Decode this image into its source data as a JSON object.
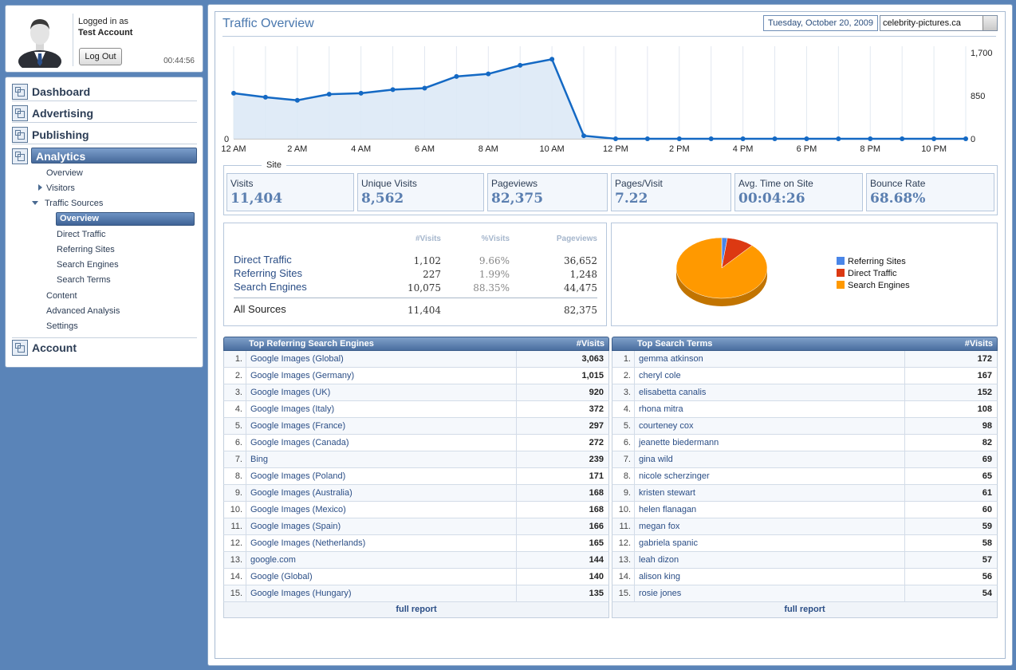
{
  "colors": {
    "accent": "#4a78ae",
    "line": "#1469c4",
    "pie_referring": "#4a86e8",
    "pie_direct": "#dc3912",
    "pie_search": "#ff9900"
  },
  "user": {
    "logged_in_label": "Logged in as",
    "account_name": "Test Account",
    "logout_label": "Log Out",
    "timer": "00:44:56"
  },
  "nav": {
    "main": [
      {
        "label": "Dashboard",
        "icon": "dashboard-icon"
      },
      {
        "label": "Advertising",
        "icon": "advertising-icon"
      },
      {
        "label": "Publishing",
        "icon": "publishing-icon"
      },
      {
        "label": "Analytics",
        "icon": "analytics-icon"
      },
      {
        "label": "Account",
        "icon": "account-icon"
      }
    ],
    "sub": [
      "Overview",
      "Visitors",
      "Traffic Sources",
      "Content",
      "Advanced Analysis",
      "Settings"
    ],
    "traffic_sub": [
      "Overview",
      "Direct Traffic",
      "Referring Sites",
      "Search Engines",
      "Search Terms"
    ]
  },
  "header": {
    "title": "Traffic Overview",
    "date": "Tuesday, October 20, 2009",
    "site": "celebrity-pictures.ca"
  },
  "chart_data": {
    "type": "line",
    "x": [
      "12 AM",
      "1 AM",
      "2 AM",
      "3 AM",
      "4 AM",
      "5 AM",
      "6 AM",
      "7 AM",
      "8 AM",
      "9 AM",
      "10 AM",
      "11 AM",
      "12 PM",
      "1 PM",
      "2 PM",
      "3 PM",
      "4 PM",
      "5 PM",
      "6 PM",
      "7 PM",
      "8 PM",
      "9 PM",
      "10 PM",
      "11 PM"
    ],
    "x_tick_labels": [
      "12 AM",
      "2 AM",
      "4 AM",
      "6 AM",
      "8 AM",
      "10 AM",
      "12 PM",
      "2 PM",
      "4 PM",
      "6 PM",
      "8 PM",
      "10 PM"
    ],
    "values": [
      900,
      820,
      760,
      880,
      900,
      970,
      1000,
      1230,
      1280,
      1450,
      1570,
      60,
      0,
      0,
      0,
      0,
      0,
      0,
      0,
      0,
      0,
      0,
      0,
      0
    ],
    "ylim": [
      0,
      1700
    ],
    "y_ticks": [
      "1,700",
      "850",
      "0"
    ],
    "y_left_tick": "0",
    "grid": true
  },
  "site": {
    "legend": "Site",
    "stats": [
      {
        "label": "Visits",
        "value": "11,404"
      },
      {
        "label": "Unique Visits",
        "value": "8,562"
      },
      {
        "label": "Pageviews",
        "value": "82,375"
      },
      {
        "label": "Pages/Visit",
        "value": "7.22"
      },
      {
        "label": "Avg. Time on Site",
        "value": "00:04:26"
      },
      {
        "label": "Bounce Rate",
        "value": "68.68%"
      }
    ]
  },
  "sources": {
    "headers": {
      "visits": "#Visits",
      "pct": "%Visits",
      "pageviews": "Pageviews"
    },
    "rows": [
      {
        "name": "Direct Traffic",
        "visits": "1,102",
        "pct": "9.66%",
        "pageviews": "36,652"
      },
      {
        "name": "Referring Sites",
        "visits": "227",
        "pct": "1.99%",
        "pageviews": "1,248"
      },
      {
        "name": "Search Engines",
        "visits": "10,075",
        "pct": "88.35%",
        "pageviews": "44,475"
      }
    ],
    "total": {
      "name": "All Sources",
      "visits": "11,404",
      "pageviews": "82,375"
    }
  },
  "pie": {
    "slices": [
      {
        "name": "Referring Sites",
        "pct": 1.99
      },
      {
        "name": "Direct Traffic",
        "pct": 9.66
      },
      {
        "name": "Search Engines",
        "pct": 88.35
      }
    ]
  },
  "engines": {
    "title": "Top Referring Search Engines",
    "value_header": "#Visits",
    "footer": "full report",
    "rows": [
      {
        "idx": "1.",
        "name": "Google Images (Global)",
        "value": "3,063"
      },
      {
        "idx": "2.",
        "name": "Google Images (Germany)",
        "value": "1,015"
      },
      {
        "idx": "3.",
        "name": "Google Images (UK)",
        "value": "920"
      },
      {
        "idx": "4.",
        "name": "Google Images (Italy)",
        "value": "372"
      },
      {
        "idx": "5.",
        "name": "Google Images (France)",
        "value": "297"
      },
      {
        "idx": "6.",
        "name": "Google Images (Canada)",
        "value": "272"
      },
      {
        "idx": "7.",
        "name": "Bing",
        "value": "239"
      },
      {
        "idx": "8.",
        "name": "Google Images (Poland)",
        "value": "171"
      },
      {
        "idx": "9.",
        "name": "Google Images (Australia)",
        "value": "168"
      },
      {
        "idx": "10.",
        "name": "Google Images (Mexico)",
        "value": "168"
      },
      {
        "idx": "11.",
        "name": "Google Images (Spain)",
        "value": "166"
      },
      {
        "idx": "12.",
        "name": "Google Images (Netherlands)",
        "value": "165"
      },
      {
        "idx": "13.",
        "name": "google.com",
        "value": "144"
      },
      {
        "idx": "14.",
        "name": "Google (Global)",
        "value": "140"
      },
      {
        "idx": "15.",
        "name": "Google Images (Hungary)",
        "value": "135"
      }
    ]
  },
  "terms": {
    "title": "Top Search Terms",
    "value_header": "#Visits",
    "footer": "full report",
    "rows": [
      {
        "idx": "1.",
        "name": "gemma atkinson",
        "value": "172"
      },
      {
        "idx": "2.",
        "name": "cheryl cole",
        "value": "167"
      },
      {
        "idx": "3.",
        "name": "elisabetta canalis",
        "value": "152"
      },
      {
        "idx": "4.",
        "name": "rhona mitra",
        "value": "108"
      },
      {
        "idx": "5.",
        "name": "courteney cox",
        "value": "98"
      },
      {
        "idx": "6.",
        "name": "jeanette biedermann",
        "value": "82"
      },
      {
        "idx": "7.",
        "name": "gina wild",
        "value": "69"
      },
      {
        "idx": "8.",
        "name": "nicole scherzinger",
        "value": "65"
      },
      {
        "idx": "9.",
        "name": "kristen stewart",
        "value": "61"
      },
      {
        "idx": "10.",
        "name": "helen flanagan",
        "value": "60"
      },
      {
        "idx": "11.",
        "name": "megan fox",
        "value": "59"
      },
      {
        "idx": "12.",
        "name": "gabriela spanic",
        "value": "58"
      },
      {
        "idx": "13.",
        "name": "leah dizon",
        "value": "57"
      },
      {
        "idx": "14.",
        "name": "alison king",
        "value": "56"
      },
      {
        "idx": "15.",
        "name": "rosie jones",
        "value": "54"
      }
    ]
  }
}
